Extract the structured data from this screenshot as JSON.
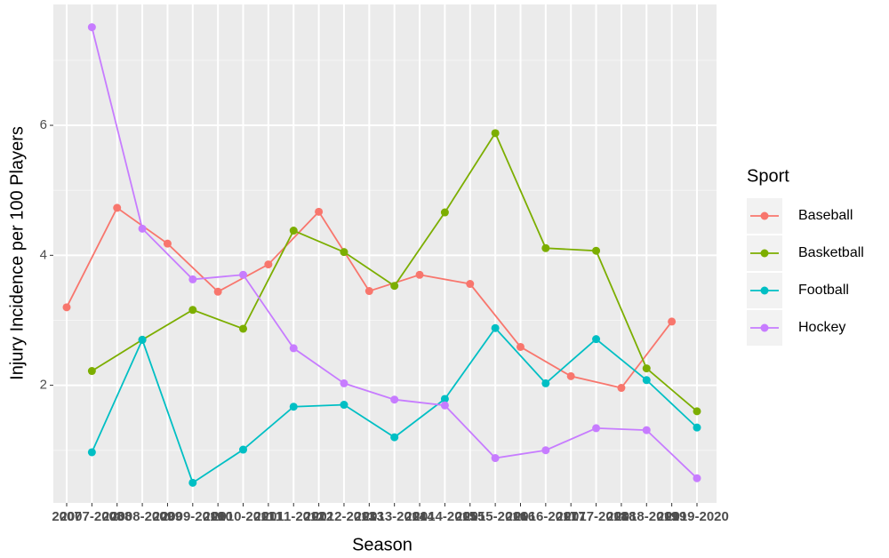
{
  "chart_data": {
    "type": "line",
    "x_label": "Season",
    "y_label": "Injury Incidence per 100 Players",
    "legend_title": "Sport",
    "legend_position": "right",
    "categories": [
      "2007",
      "2007-2008",
      "2008",
      "2008-2009",
      "2009",
      "2009-2010",
      "2010",
      "2010-2011",
      "2011",
      "2011-2012",
      "2012",
      "2012-2013",
      "2013",
      "2013-2014",
      "2014",
      "2014-2015",
      "2015",
      "2015-2016",
      "2016",
      "2016-2017",
      "2017",
      "2017-2018",
      "2018",
      "2018-2019",
      "2019",
      "2019-2020"
    ],
    "ylim": [
      0.19,
      7.86
    ],
    "yticks": [
      2,
      4,
      6
    ],
    "grid": true,
    "series": [
      {
        "name": "Baseball",
        "color": "#F8766D",
        "x": [
          "2007",
          "2008",
          "2009",
          "2010",
          "2011",
          "2012",
          "2013",
          "2014",
          "2015",
          "2016",
          "2017",
          "2018",
          "2019"
        ],
        "values": [
          3.2,
          4.73,
          4.18,
          3.44,
          3.86,
          4.67,
          3.45,
          3.7,
          3.56,
          2.59,
          2.14,
          1.96,
          2.98
        ]
      },
      {
        "name": "Basketball",
        "color": "#7CAE00",
        "x": [
          "2007-2008",
          "2008-2009",
          "2009-2010",
          "2010-2011",
          "2011-2012",
          "2012-2013",
          "2013-2014",
          "2014-2015",
          "2015-2016",
          "2016-2017",
          "2017-2018",
          "2018-2019",
          "2019-2020"
        ],
        "values": [
          2.22,
          2.7,
          3.16,
          2.87,
          4.38,
          4.05,
          3.53,
          4.66,
          5.88,
          4.11,
          4.07,
          2.26,
          1.6
        ]
      },
      {
        "name": "Football",
        "color": "#00BFC4",
        "x": [
          "2007-2008",
          "2008-2009",
          "2009-2010",
          "2010-2011",
          "2011-2012",
          "2012-2013",
          "2013-2014",
          "2014-2015",
          "2015-2016",
          "2016-2017",
          "2017-2018",
          "2018-2019",
          "2019-2020"
        ],
        "values": [
          0.97,
          2.7,
          0.5,
          1.01,
          1.67,
          1.7,
          1.2,
          1.79,
          2.88,
          2.03,
          2.71,
          2.08,
          1.35
        ]
      },
      {
        "name": "Hockey",
        "color": "#C77CFF",
        "x": [
          "2007-2008",
          "2008-2009",
          "2009-2010",
          "2010-2011",
          "2011-2012",
          "2012-2013",
          "2013-2014",
          "2014-2015",
          "2015-2016",
          "2016-2017",
          "2017-2018",
          "2018-2019",
          "2019-2020"
        ],
        "values": [
          7.51,
          4.41,
          3.63,
          3.7,
          2.57,
          2.03,
          1.78,
          1.69,
          0.88,
          1.0,
          1.34,
          1.31,
          0.57
        ]
      }
    ]
  }
}
